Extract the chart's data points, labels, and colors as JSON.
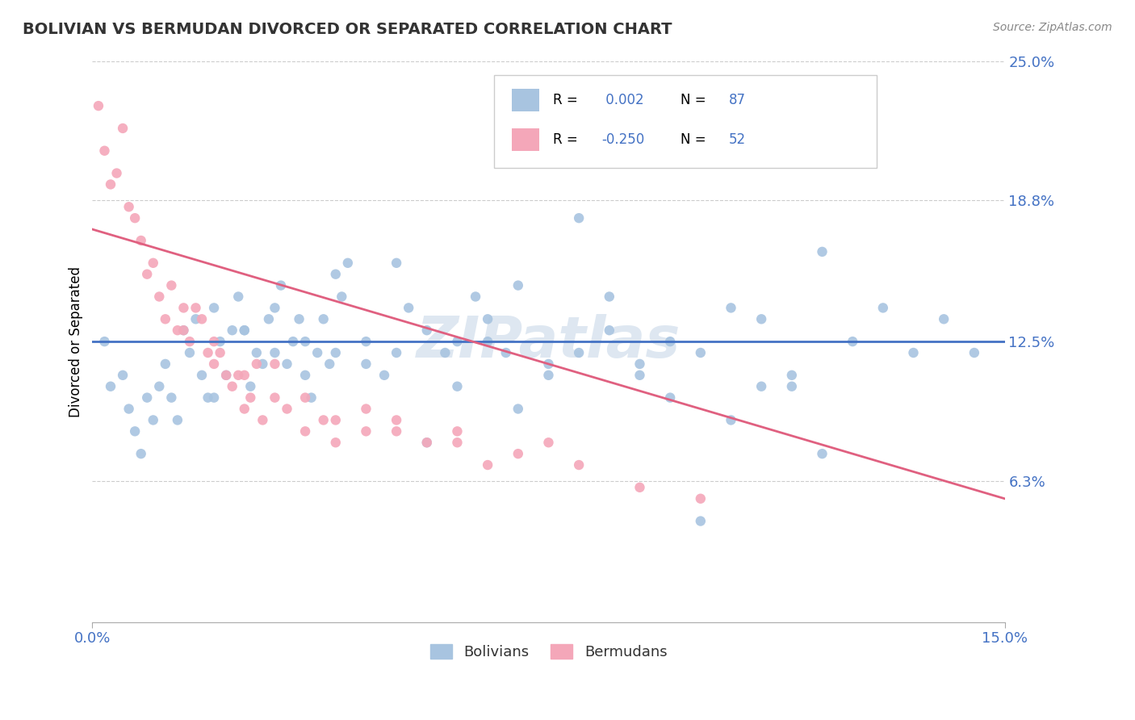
{
  "title": "BOLIVIAN VS BERMUDAN DIVORCED OR SEPARATED CORRELATION CHART",
  "source": "Source: ZipAtlas.com",
  "ylabel": "Divorced or Separated",
  "watermark": "ZIPatlas",
  "xlim": [
    0.0,
    15.0
  ],
  "ylim": [
    0.0,
    25.0
  ],
  "xtick_vals": [
    0.0,
    15.0
  ],
  "xtick_labels": [
    "0.0%",
    "15.0%"
  ],
  "ytick_vals": [
    6.3,
    12.5,
    18.8,
    25.0
  ],
  "ytick_labels": [
    "6.3%",
    "12.5%",
    "18.8%",
    "25.0%"
  ],
  "legend_labels": [
    "Bolivians",
    "Bermudans"
  ],
  "legend_r": [
    " 0.002",
    "-0.250"
  ],
  "legend_n": [
    "87",
    "52"
  ],
  "blue_color": "#a8c4e0",
  "pink_color": "#f4a7b9",
  "blue_line_color": "#4472c4",
  "pink_line_color": "#e06080",
  "text_color": "#4472c4",
  "grid_color": "#cccccc",
  "blue_scatter_x": [
    0.2,
    0.3,
    0.5,
    0.6,
    0.7,
    0.8,
    0.9,
    1.0,
    1.1,
    1.2,
    1.3,
    1.4,
    1.5,
    1.6,
    1.7,
    1.8,
    1.9,
    2.0,
    2.1,
    2.2,
    2.3,
    2.4,
    2.5,
    2.6,
    2.7,
    2.8,
    2.9,
    3.0,
    3.1,
    3.2,
    3.3,
    3.4,
    3.5,
    3.6,
    3.7,
    3.8,
    3.9,
    4.0,
    4.1,
    4.2,
    4.5,
    4.8,
    5.0,
    5.2,
    5.5,
    5.8,
    6.0,
    6.3,
    6.5,
    6.8,
    7.0,
    7.5,
    8.0,
    8.5,
    9.0,
    9.5,
    10.0,
    10.5,
    11.0,
    11.5,
    12.0,
    2.0,
    2.5,
    3.0,
    3.5,
    4.0,
    4.5,
    5.0,
    5.5,
    6.0,
    6.5,
    7.0,
    7.5,
    8.0,
    8.5,
    9.0,
    9.5,
    10.0,
    10.5,
    11.0,
    11.5,
    12.0,
    12.5,
    13.0,
    13.5,
    14.0,
    14.5
  ],
  "blue_scatter_y": [
    12.5,
    10.5,
    11.0,
    9.5,
    8.5,
    7.5,
    10.0,
    9.0,
    10.5,
    11.5,
    10.0,
    9.0,
    13.0,
    12.0,
    13.5,
    11.0,
    10.0,
    14.0,
    12.5,
    11.0,
    13.0,
    14.5,
    13.0,
    10.5,
    12.0,
    11.5,
    13.5,
    14.0,
    15.0,
    11.5,
    12.5,
    13.5,
    11.0,
    10.0,
    12.0,
    13.5,
    11.5,
    15.5,
    14.5,
    16.0,
    12.5,
    11.0,
    16.0,
    14.0,
    13.0,
    12.0,
    12.5,
    14.5,
    13.5,
    12.0,
    15.0,
    11.5,
    18.0,
    14.5,
    11.0,
    12.5,
    12.0,
    14.0,
    13.5,
    10.5,
    16.5,
    10.0,
    13.0,
    12.0,
    12.5,
    12.0,
    11.5,
    12.0,
    8.0,
    10.5,
    12.5,
    9.5,
    11.0,
    12.0,
    13.0,
    11.5,
    10.0,
    4.5,
    9.0,
    10.5,
    11.0,
    7.5,
    12.5,
    14.0,
    12.0,
    13.5,
    12.0
  ],
  "pink_scatter_x": [
    0.1,
    0.2,
    0.3,
    0.4,
    0.5,
    0.6,
    0.7,
    0.8,
    0.9,
    1.0,
    1.1,
    1.2,
    1.3,
    1.4,
    1.5,
    1.6,
    1.7,
    1.8,
    1.9,
    2.0,
    2.1,
    2.2,
    2.3,
    2.4,
    2.5,
    2.6,
    2.7,
    2.8,
    3.0,
    3.2,
    3.5,
    3.8,
    4.0,
    4.5,
    5.0,
    5.5,
    6.0,
    6.5,
    7.0,
    7.5,
    8.0,
    1.5,
    2.0,
    2.5,
    3.0,
    3.5,
    4.0,
    4.5,
    5.0,
    6.0,
    9.0,
    10.0
  ],
  "pink_scatter_y": [
    23.0,
    21.0,
    19.5,
    20.0,
    22.0,
    18.5,
    18.0,
    17.0,
    15.5,
    16.0,
    14.5,
    13.5,
    15.0,
    13.0,
    14.0,
    12.5,
    14.0,
    13.5,
    12.0,
    11.5,
    12.0,
    11.0,
    10.5,
    11.0,
    9.5,
    10.0,
    11.5,
    9.0,
    10.0,
    9.5,
    8.5,
    9.0,
    8.0,
    9.5,
    8.5,
    8.0,
    8.5,
    7.0,
    7.5,
    8.0,
    7.0,
    13.0,
    12.5,
    11.0,
    11.5,
    10.0,
    9.0,
    8.5,
    9.0,
    8.0,
    6.0,
    5.5
  ],
  "blue_trend_x": [
    0.0,
    15.0
  ],
  "blue_trend_y": [
    12.5,
    12.5
  ],
  "pink_trend_x": [
    0.0,
    15.0
  ],
  "pink_trend_y": [
    17.5,
    5.5
  ]
}
